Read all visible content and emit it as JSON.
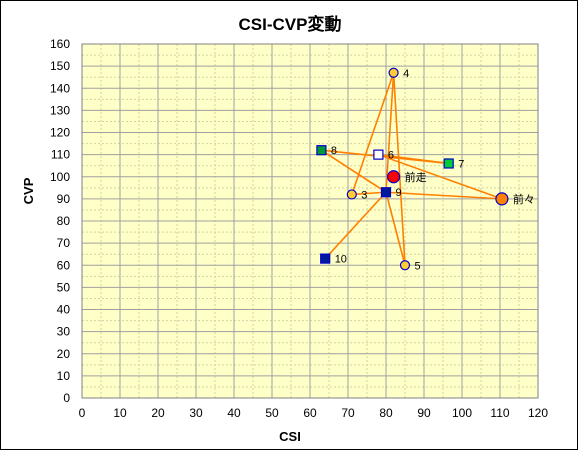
{
  "chart_data": {
    "type": "scatter",
    "title": "CSI-CVP変動",
    "xlabel": "CSI",
    "ylabel": "CVP",
    "xlim": [
      0,
      120
    ],
    "ylim": [
      0,
      160
    ],
    "x_ticks": [
      "0",
      "10",
      "20",
      "30",
      "40",
      "50",
      "60",
      "70",
      "80",
      "90",
      "100",
      "110",
      "120"
    ],
    "y_ticks": [
      "0",
      "10",
      "20",
      "30",
      "40",
      "50",
      "60",
      "70",
      "80",
      "90",
      "100",
      "110",
      "120",
      "130",
      "140",
      "150",
      "160"
    ],
    "grid": true,
    "legend": "none",
    "colors": {
      "plot_background": "#ffffc8",
      "grid_major": "#a0a0a0",
      "grid_minor": "#d2d2a6",
      "line": "#ff8000",
      "circle_yellow": "#ffcc33",
      "circle_red": "#ff0000",
      "circle_orange": "#ff8000",
      "square_navy": "#001a99",
      "square_green": "#00cc33",
      "square_white": "#ffffff",
      "marker_edge": "#0000cc"
    },
    "points": [
      {
        "label": "前々",
        "x": 110.5,
        "y": 90,
        "marker": "circle",
        "fill": "#ff8000",
        "size": "large"
      },
      {
        "label": "前走",
        "x": 82,
        "y": 100,
        "marker": "circle",
        "fill": "#ff0000",
        "size": "large"
      },
      {
        "label": "3",
        "x": 71,
        "y": 92,
        "marker": "circle",
        "fill": "#ffcc33",
        "size": "small"
      },
      {
        "label": "4",
        "x": 82,
        "y": 147,
        "marker": "circle",
        "fill": "#ffcc33",
        "size": "small"
      },
      {
        "label": "5",
        "x": 85,
        "y": 60,
        "marker": "circle",
        "fill": "#ffcc33",
        "size": "small"
      },
      {
        "label": "6",
        "x": 78,
        "y": 110,
        "marker": "square",
        "fill": "#ffffff",
        "size": "small"
      },
      {
        "label": "7",
        "x": 96.5,
        "y": 106,
        "marker": "square",
        "fill": "#00cc33",
        "size": "small"
      },
      {
        "label": "8",
        "x": 63,
        "y": 112,
        "marker": "square",
        "fill": "#009933",
        "size": "small"
      },
      {
        "label": "9",
        "x": 80,
        "y": 93,
        "marker": "square",
        "fill": "#001a99",
        "size": "small"
      },
      {
        "label": "10",
        "x": 64,
        "y": 63,
        "marker": "square",
        "fill": "#001a99",
        "size": "small"
      }
    ],
    "connections": [
      [
        "9",
        "前々"
      ],
      [
        "9",
        "10"
      ],
      [
        "9",
        "3"
      ],
      [
        "9",
        "4"
      ],
      [
        "9",
        "5"
      ],
      [
        "9",
        "8"
      ],
      [
        "3",
        "4"
      ],
      [
        "4",
        "5"
      ],
      [
        "8",
        "7"
      ],
      [
        "6",
        "7"
      ],
      [
        "前々",
        "6"
      ]
    ]
  }
}
